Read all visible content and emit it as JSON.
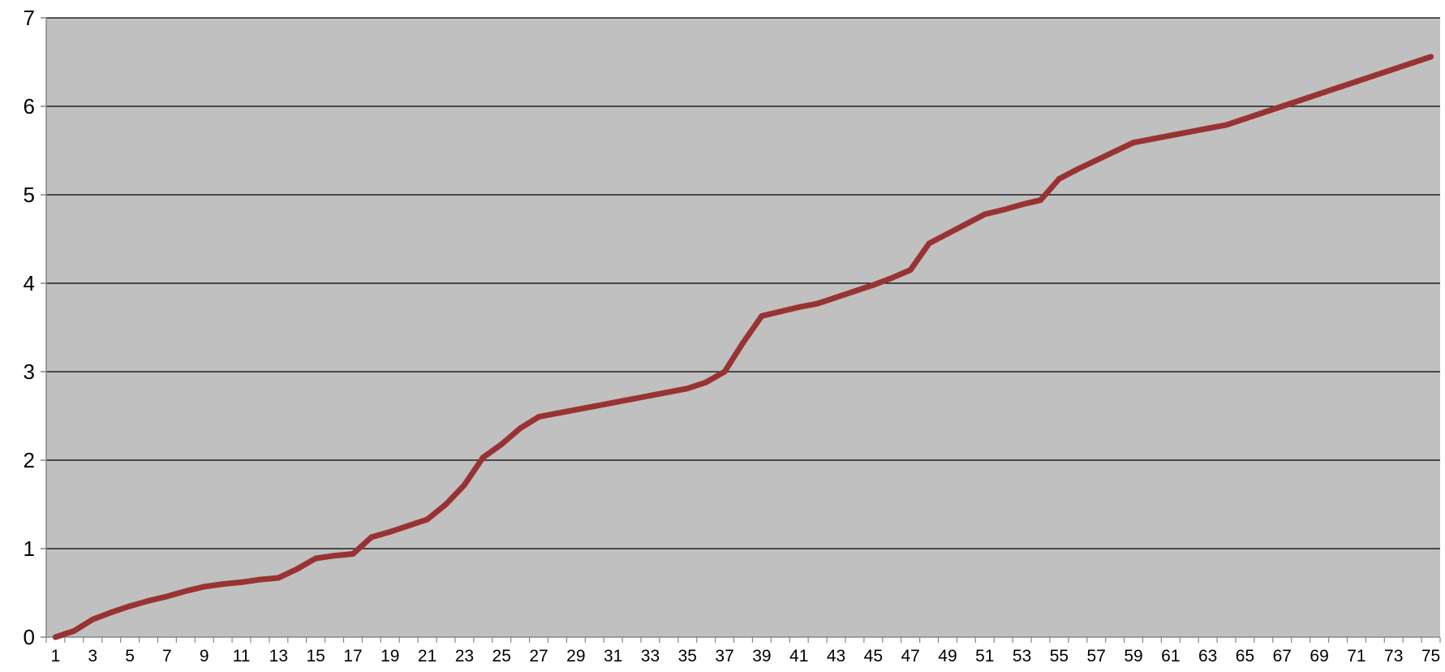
{
  "chart_data": {
    "type": "line",
    "title": "",
    "xlabel": "",
    "ylabel": "",
    "x": [
      1,
      2,
      3,
      4,
      5,
      6,
      7,
      8,
      9,
      10,
      11,
      12,
      13,
      14,
      15,
      16,
      17,
      18,
      19,
      20,
      21,
      22,
      23,
      24,
      25,
      26,
      27,
      28,
      29,
      30,
      31,
      32,
      33,
      34,
      35,
      36,
      37,
      38,
      39,
      40,
      41,
      42,
      43,
      44,
      45,
      46,
      47,
      48,
      49,
      50,
      51,
      52,
      53,
      54,
      55,
      56,
      57,
      58,
      59,
      60,
      61,
      62,
      63,
      64,
      65,
      66,
      67,
      68,
      69,
      70,
      71,
      72,
      73,
      74,
      75
    ],
    "xtick_labels": [
      "1",
      "3",
      "5",
      "7",
      "9",
      "11",
      "13",
      "15",
      "17",
      "19",
      "21",
      "23",
      "25",
      "27",
      "29",
      "31",
      "33",
      "35",
      "37",
      "39",
      "41",
      "43",
      "45",
      "47",
      "49",
      "51",
      "53",
      "55",
      "57",
      "59",
      "61",
      "63",
      "65",
      "67",
      "69",
      "71",
      "73",
      "75"
    ],
    "ylim": [
      0,
      7
    ],
    "yticks": [
      0,
      1,
      2,
      3,
      4,
      5,
      6,
      7
    ],
    "grid": "horizontal",
    "legend": "none",
    "series": [
      {
        "values": [
          0.0,
          0.07,
          0.2,
          0.28,
          0.35,
          0.41,
          0.46,
          0.52,
          0.57,
          0.6,
          0.62,
          0.65,
          0.67,
          0.77,
          0.89,
          0.92,
          0.94,
          1.13,
          1.19,
          1.26,
          1.33,
          1.5,
          1.72,
          2.03,
          2.18,
          2.36,
          2.49,
          2.53,
          2.57,
          2.61,
          2.65,
          2.69,
          2.73,
          2.77,
          2.81,
          2.88,
          3.0,
          3.33,
          3.63,
          3.68,
          3.73,
          3.77,
          3.84,
          3.91,
          3.98,
          4.06,
          4.15,
          4.45,
          4.56,
          4.67,
          4.78,
          4.83,
          4.89,
          4.94,
          5.18,
          5.29,
          5.39,
          5.49,
          5.59,
          5.63,
          5.67,
          5.71,
          5.75,
          5.79,
          5.86,
          5.93,
          6.0,
          6.07,
          6.14,
          6.21,
          6.28,
          6.35,
          6.42,
          6.49,
          6.56
        ]
      }
    ],
    "colors": {
      "plot_background": "#c0c0c0",
      "line": "#993333",
      "gridline": "#000000",
      "axis": "#868686"
    }
  }
}
